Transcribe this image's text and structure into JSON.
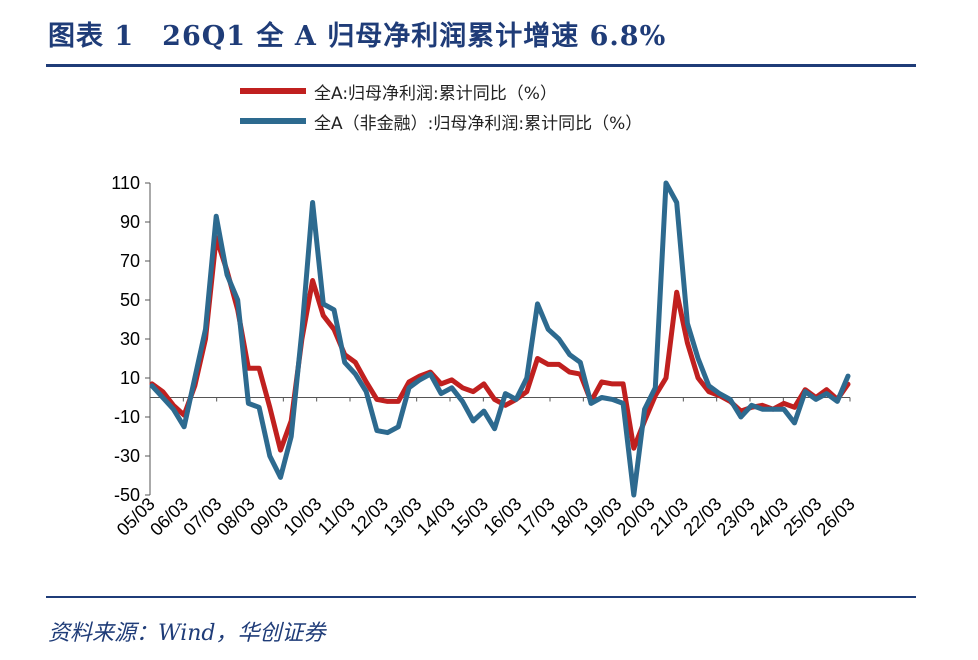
{
  "header": {
    "title": "图表 1　26Q1 全 A 归母净利润累计增速 6.8%"
  },
  "footer": {
    "source": "资料来源：Wind，华创证券"
  },
  "chart_data": {
    "type": "line",
    "title": "",
    "xlabel": "",
    "ylabel": "",
    "ylim": [
      -50,
      110
    ],
    "yticks": [
      110,
      90,
      70,
      50,
      30,
      10,
      -10,
      -30,
      -50
    ],
    "grid": false,
    "legend_position": "top",
    "x_labels": [
      "05/03",
      "06/03",
      "07/03",
      "08/03",
      "09/03",
      "10/03",
      "11/03",
      "12/03",
      "13/03",
      "14/03",
      "15/03",
      "16/03",
      "17/03",
      "18/03",
      "19/03",
      "20/03",
      "21/03",
      "22/03",
      "23/03",
      "24/03",
      "25/03",
      "26/03"
    ],
    "series": [
      {
        "name": "全A:归母净利润:累计同比（%）",
        "color": "#c0201f",
        "values": [
          7,
          3,
          -4,
          -9,
          6,
          30,
          82,
          65,
          45,
          15,
          15,
          -5,
          -27,
          -12,
          30,
          60,
          42,
          35,
          22,
          18,
          8,
          -1,
          -2,
          -2,
          8,
          11,
          13,
          7,
          9,
          5,
          3,
          7,
          -1,
          -4,
          -1,
          3,
          20,
          17,
          17,
          13,
          12,
          -2,
          8,
          7,
          7,
          -26,
          -12,
          1,
          10,
          54,
          28,
          10,
          3,
          1,
          -2,
          -7,
          -5,
          -4,
          -6,
          -3,
          -5,
          4,
          0,
          4,
          -1,
          6.8
        ]
      },
      {
        "name": "全A（非金融）:归母净利润:累计同比（%）",
        "color": "#2d6a8f",
        "values": [
          6,
          0,
          -6,
          -15,
          10,
          35,
          93,
          63,
          50,
          -3,
          -5,
          -30,
          -41,
          -20,
          34,
          100,
          48,
          45,
          18,
          12,
          3,
          -17,
          -18,
          -15,
          5,
          9,
          12,
          2,
          5,
          -2,
          -12,
          -7,
          -16,
          2,
          -1,
          10,
          48,
          35,
          30,
          22,
          18,
          -3,
          0,
          -1,
          -3,
          -50,
          -6,
          5,
          115,
          100,
          38,
          20,
          6,
          2,
          -1,
          -10,
          -4,
          -6,
          -6,
          -6,
          -13,
          3,
          -1,
          2,
          -2,
          11
        ]
      }
    ]
  }
}
